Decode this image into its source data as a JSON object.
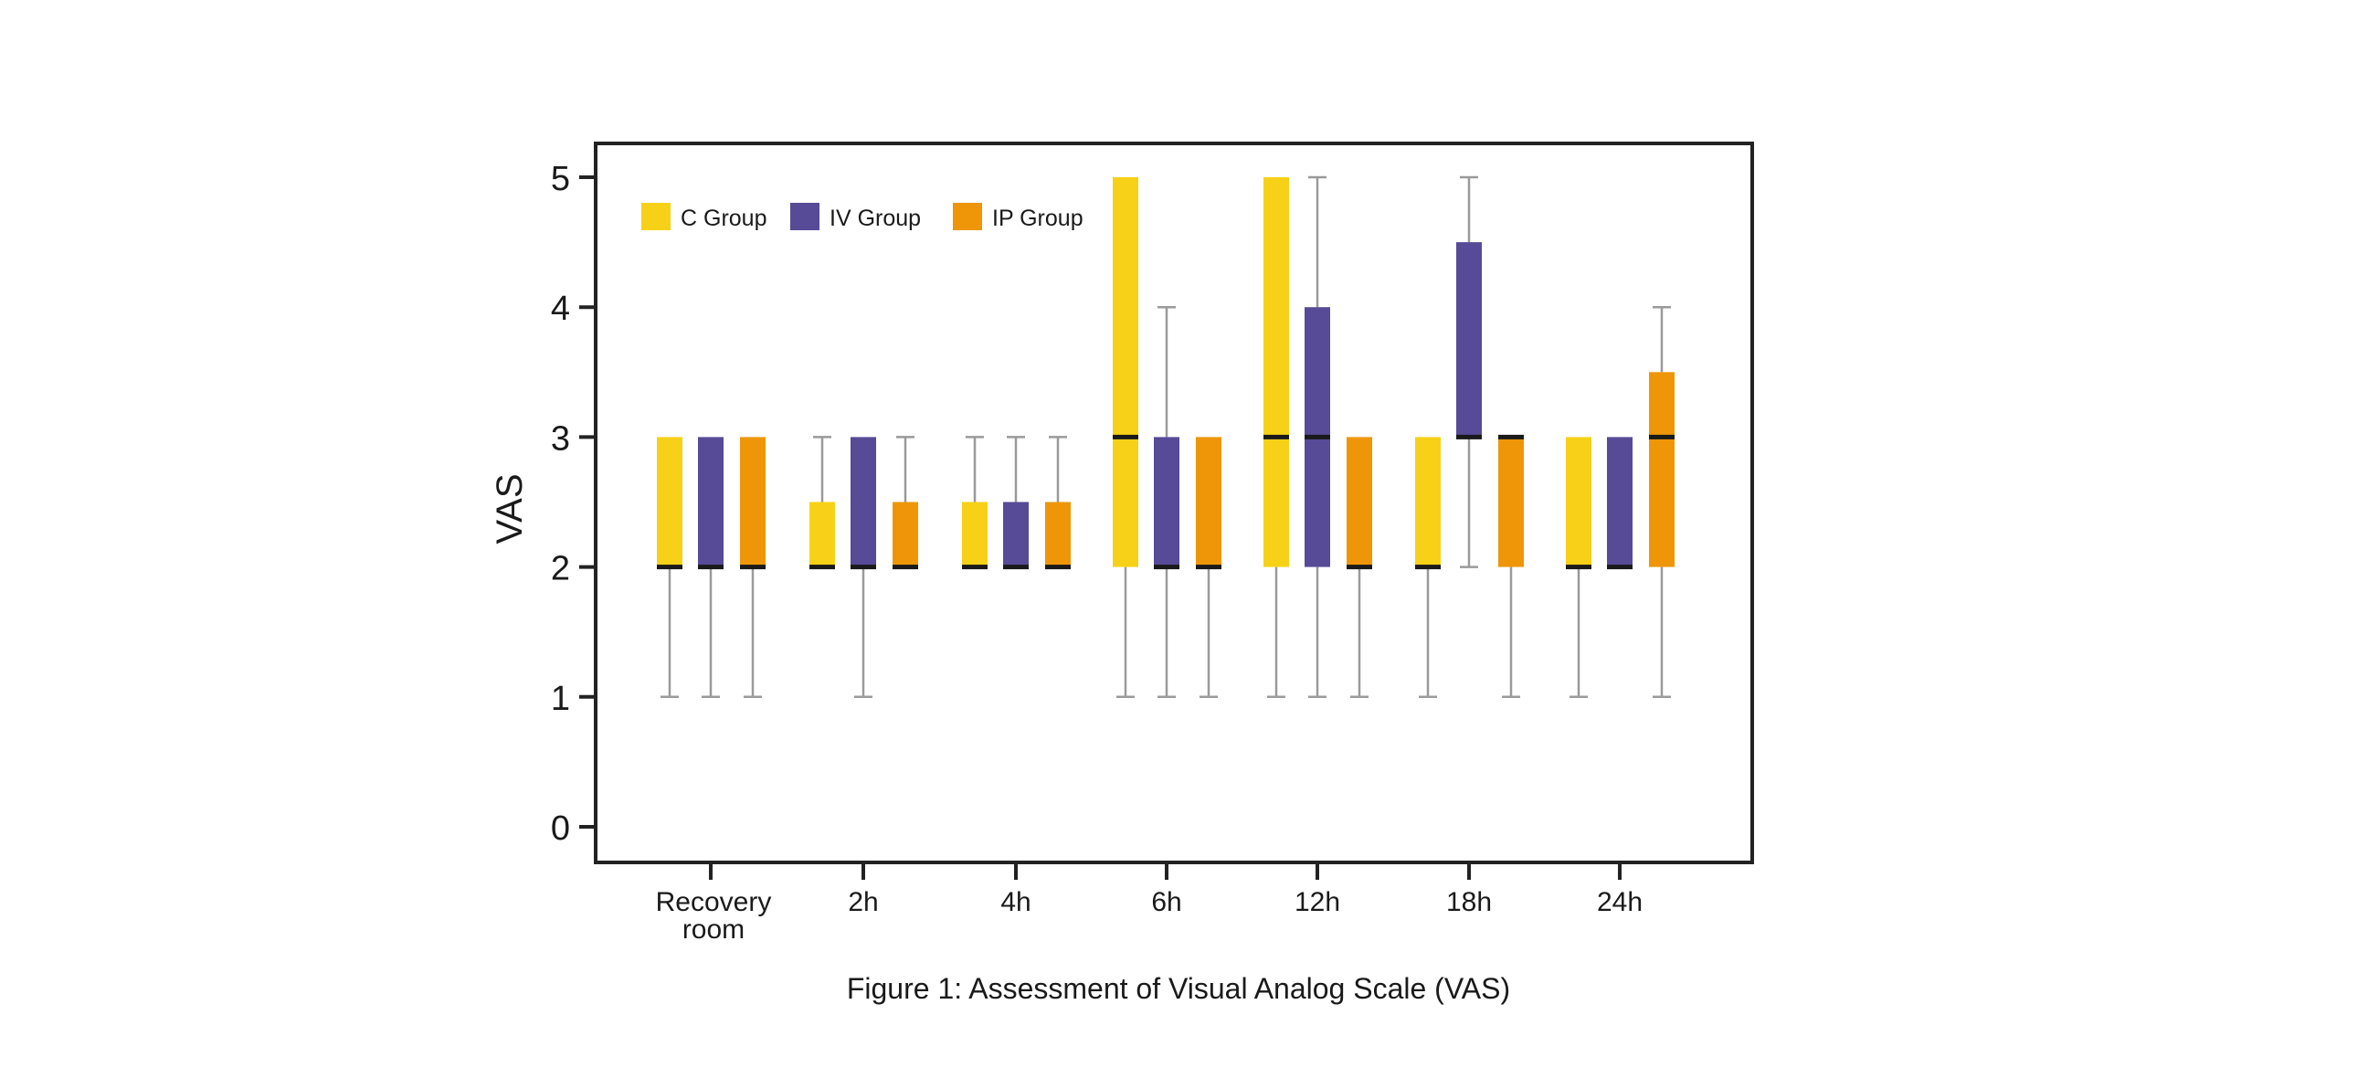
{
  "chart_data": {
    "type": "boxplot",
    "title": "",
    "caption": "Figure 1: Assessment of Visual Analog Scale (VAS)",
    "xlabel": "",
    "ylabel": "VAS",
    "ylim": [
      -0.25,
      5.3
    ],
    "yticks": [
      0,
      1,
      2,
      3,
      4,
      5
    ],
    "grid": false,
    "legend_position": "top-left",
    "categories": [
      {
        "label": "Recovery room",
        "lines": [
          "Recovery",
          "room"
        ]
      },
      {
        "label": "2h",
        "lines": [
          "2h"
        ]
      },
      {
        "label": "4h",
        "lines": [
          "4h"
        ]
      },
      {
        "label": "6h",
        "lines": [
          "6h"
        ]
      },
      {
        "label": "12h",
        "lines": [
          "12h"
        ]
      },
      {
        "label": "18h",
        "lines": [
          "18h"
        ]
      },
      {
        "label": "24h",
        "lines": [
          "24h"
        ]
      }
    ],
    "series": [
      {
        "name": "C Group",
        "color": "#F7D117",
        "boxes": [
          {
            "min": 1,
            "q1": 2,
            "median": 2,
            "q3": 3,
            "max": 3
          },
          {
            "min": 2,
            "q1": 2,
            "median": 2,
            "q3": 2.5,
            "max": 3
          },
          {
            "min": 2,
            "q1": 2,
            "median": 2,
            "q3": 2.5,
            "max": 3
          },
          {
            "min": 1,
            "q1": 2,
            "median": 3,
            "q3": 5,
            "max": 5
          },
          {
            "min": 1,
            "q1": 2,
            "median": 3,
            "q3": 5,
            "max": 5
          },
          {
            "min": 1,
            "q1": 2,
            "median": 2,
            "q3": 3,
            "max": 3
          },
          {
            "min": 1,
            "q1": 2,
            "median": 2,
            "q3": 3,
            "max": 3
          }
        ]
      },
      {
        "name": "IV Group",
        "color": "#574A96",
        "boxes": [
          {
            "min": 1,
            "q1": 2,
            "median": 2,
            "q3": 3,
            "max": 3
          },
          {
            "min": 1,
            "q1": 2,
            "median": 2,
            "q3": 3,
            "max": 3
          },
          {
            "min": 2,
            "q1": 2,
            "median": 2,
            "q3": 2.5,
            "max": 3
          },
          {
            "min": 1,
            "q1": 2,
            "median": 2,
            "q3": 3,
            "max": 4
          },
          {
            "min": 1,
            "q1": 2,
            "median": 3,
            "q3": 4,
            "max": 5
          },
          {
            "min": 2,
            "q1": 3,
            "median": 3,
            "q3": 4.5,
            "max": 5
          },
          {
            "min": 2,
            "q1": 2,
            "median": 2,
            "q3": 3,
            "max": 3
          }
        ]
      },
      {
        "name": "IP Group",
        "color": "#EE9608",
        "boxes": [
          {
            "min": 1,
            "q1": 2,
            "median": 2,
            "q3": 3,
            "max": 3
          },
          {
            "min": 2,
            "q1": 2,
            "median": 2,
            "q3": 2.5,
            "max": 3
          },
          {
            "min": 2,
            "q1": 2,
            "median": 2,
            "q3": 2.5,
            "max": 3
          },
          {
            "min": 1,
            "q1": 2,
            "median": 2,
            "q3": 3,
            "max": 3
          },
          {
            "min": 1,
            "q1": 2,
            "median": 2,
            "q3": 3,
            "max": 3
          },
          {
            "min": 1,
            "q1": 2,
            "median": 3,
            "q3": 3,
            "max": 3
          },
          {
            "min": 1,
            "q1": 2,
            "median": 3,
            "q3": 3.5,
            "max": 4
          }
        ]
      }
    ],
    "colors": {
      "whisker": "#9A9A9A",
      "median": "#1A1A1A",
      "frame": "#222222"
    }
  }
}
